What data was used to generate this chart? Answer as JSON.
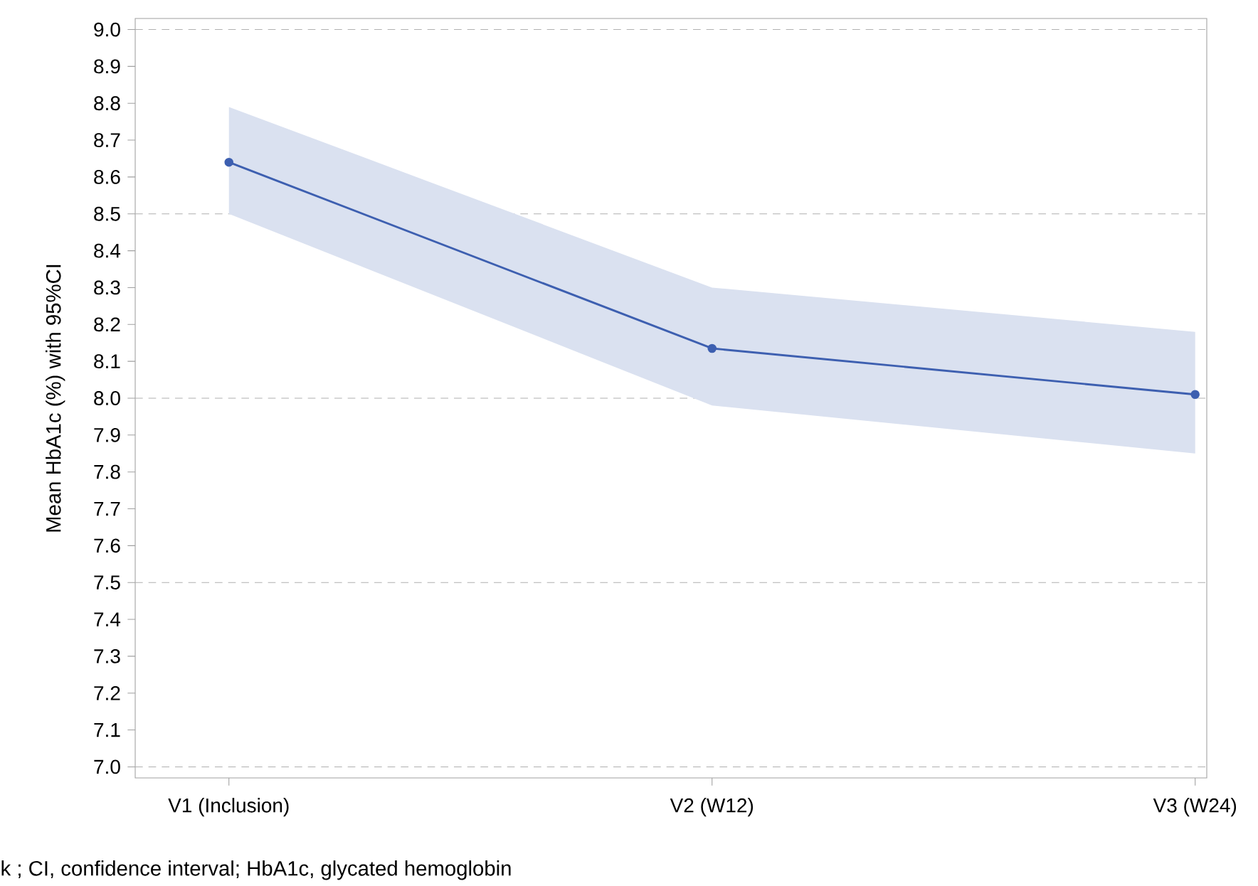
{
  "chart_data": {
    "type": "line",
    "ylabel": "Mean HbA1c (%) with 95%CI",
    "categories": [
      "V1 (Inclusion)",
      "V2 (W12)",
      "V3 (W24)"
    ],
    "series": [
      {
        "color": "#3d5fb0",
        "values": [
          8.64,
          8.135,
          8.01
        ],
        "lower": [
          8.5,
          7.98,
          7.85
        ],
        "upper": [
          8.79,
          8.3,
          8.18
        ]
      }
    ],
    "ylim": [
      6.97,
      9.03
    ],
    "yticks": [
      {
        "value": 7.0,
        "label": "7.0"
      },
      {
        "value": 7.1,
        "label": "7.1"
      },
      {
        "value": 7.2,
        "label": "7.2"
      },
      {
        "value": 7.3,
        "label": "7.3"
      },
      {
        "value": 7.4,
        "label": "7.4"
      },
      {
        "value": 7.5,
        "label": "7.5"
      },
      {
        "value": 7.6,
        "label": "7.6"
      },
      {
        "value": 7.7,
        "label": "7.7"
      },
      {
        "value": 7.8,
        "label": "7.8"
      },
      {
        "value": 7.9,
        "label": "7.9"
      },
      {
        "value": 8.0,
        "label": "8.0"
      },
      {
        "value": 8.1,
        "label": "8.1"
      },
      {
        "value": 8.2,
        "label": "8.2"
      },
      {
        "value": 8.3,
        "label": "8.3"
      },
      {
        "value": 8.4,
        "label": "8.4"
      },
      {
        "value": 8.5,
        "label": "8.5"
      },
      {
        "value": 8.6,
        "label": "8.6"
      },
      {
        "value": 8.7,
        "label": "8.7"
      },
      {
        "value": 8.8,
        "label": "8.8"
      },
      {
        "value": 8.9,
        "label": "8.9"
      },
      {
        "value": 9.0,
        "label": "9.0"
      }
    ],
    "grid": "y",
    "marker": "circle",
    "line_style": "solid",
    "annotations": [
      "k ; CI, confidence interval; HbA1c, glycated hemoglobin"
    ]
  }
}
